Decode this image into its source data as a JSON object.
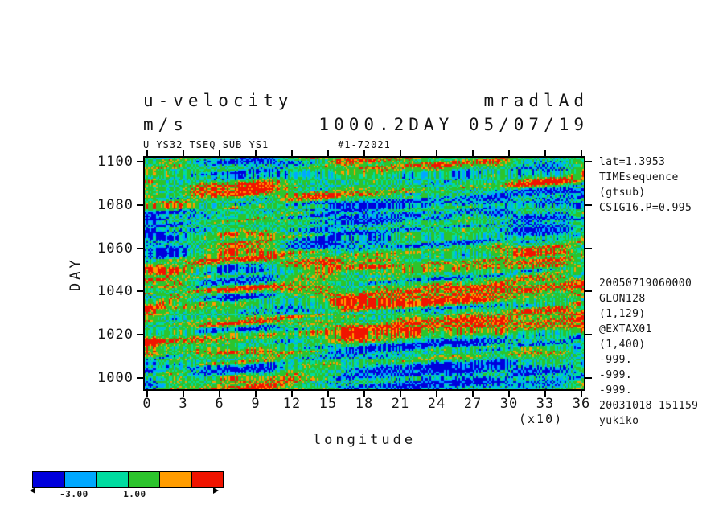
{
  "header": {
    "title_left": "u-velocity",
    "title_right": "mradlAd",
    "units": "m/s",
    "datetime_label": "1000.2DAY 05/07/19",
    "meta_left": "U YS32 TSEQ SUB YS1",
    "meta_right": "#1-72021"
  },
  "axes": {
    "y_label": "DAY",
    "x_label": "longitude",
    "x_scale_note": "(x10)"
  },
  "right_panel": {
    "top_lines": [
      "lat=1.3953",
      "TIMEsequence",
      "(gtsub)",
      "CSIG16.P=0.995"
    ],
    "bottom_lines": [
      "20050719060000",
      "GLON128",
      "(1,129)",
      "@EXTAX01",
      "(1,400)",
      "-999.",
      "-999.",
      "-999.",
      "20031018 151159",
      "yukiko"
    ]
  },
  "chart_data": {
    "type": "heatmap",
    "title": "u-velocity",
    "units": "m/s",
    "xlabel": "longitude (x10 degrees)",
    "ylabel": "DAY",
    "x_ticks": [
      "0",
      "3",
      "6",
      "9",
      "12",
      "15",
      "18",
      "21",
      "24",
      "27",
      "30",
      "33",
      "36"
    ],
    "y_ticks": [
      "1100",
      "1080",
      "1060",
      "1040",
      "1020",
      "1000"
    ],
    "x_range": [
      0,
      360
    ],
    "y_range": [
      1000,
      1100
    ],
    "grid": false,
    "legend_position": "bottom-left colorbar",
    "field_note": "dense speckled u-velocity anomaly field (time-longitude section); dominant green/aquamarine background with quasi-horizontal red and blue streaks drifting slightly upward to the right; individual grid values not resolvable at screenshot scale, reproduced as seeded stochastic field",
    "colorbar": {
      "colors": [
        "#0000dc",
        "#00a8ff",
        "#00dca0",
        "#2cc42c",
        "#ff9c00",
        "#f01400"
      ],
      "open_ended": true,
      "labels": [
        {
          "text": "-3.00",
          "pos": 0.22
        },
        {
          "text": "1.00",
          "pos": 0.54
        }
      ]
    },
    "noise": {
      "seed": 1337,
      "cell": 2,
      "tilt": 0.06,
      "octaves": [
        {
          "fx": 0.016,
          "fy": 0.2,
          "w": 0.48
        },
        {
          "fx": 0.055,
          "fy": 0.5,
          "w": 0.27
        }
      ],
      "white_w": 0.25,
      "thresholds": [
        0.32,
        0.4,
        0.475,
        0.63,
        0.685
      ]
    }
  }
}
